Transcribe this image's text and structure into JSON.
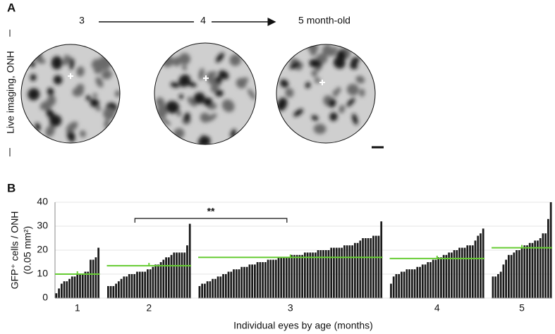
{
  "panel_a": {
    "label": "A",
    "side_label": "Live imaging, ONH",
    "timepoints": [
      "3",
      "4",
      "5 month-old"
    ]
  },
  "chart_data": {
    "type": "bar",
    "label": "B",
    "ylabel": [
      "GFP⁺ cells / ONH",
      "(0.05 mm²)"
    ],
    "xlabel": "Individual eyes by age (months)",
    "ylim": [
      0,
      40
    ],
    "yticks": [
      0,
      10,
      20,
      30,
      40
    ],
    "grid": true,
    "bar_color": "#1a1a1a",
    "mean_color": "#66cc33",
    "groups": [
      {
        "name": "1",
        "mean": 10,
        "values": [
          2,
          4,
          6,
          7,
          7,
          8,
          9,
          9,
          10,
          10,
          10,
          11,
          11,
          16,
          16,
          17,
          21
        ]
      },
      {
        "name": "2",
        "mean": 13.5,
        "values": [
          5,
          5,
          5,
          6,
          7,
          8,
          9,
          9,
          10,
          10,
          10,
          11,
          11,
          11,
          11,
          12,
          12,
          13,
          14,
          14,
          15,
          16,
          17,
          17,
          18,
          19,
          19,
          19,
          19,
          19,
          22,
          31
        ]
      },
      {
        "name": "3",
        "mean": 17,
        "values": [
          5,
          6,
          6,
          7,
          7,
          8,
          8,
          9,
          9,
          10,
          10,
          11,
          11,
          12,
          12,
          12,
          13,
          13,
          13,
          14,
          14,
          14,
          15,
          15,
          15,
          15,
          16,
          16,
          16,
          16,
          17,
          17,
          17,
          17,
          17,
          18,
          18,
          18,
          18,
          18,
          19,
          19,
          19,
          19,
          19,
          20,
          20,
          20,
          20,
          20,
          21,
          21,
          21,
          21,
          21,
          22,
          22,
          22,
          22,
          23,
          23,
          24,
          25,
          25,
          25,
          25,
          26,
          26,
          26,
          32
        ]
      },
      {
        "name": "4",
        "mean": 16.5,
        "values": [
          6,
          9,
          10,
          10,
          11,
          11,
          12,
          12,
          12,
          12,
          13,
          13,
          14,
          14,
          15,
          15,
          16,
          16,
          17,
          17,
          18,
          18,
          19,
          19,
          20,
          20,
          21,
          21,
          21,
          22,
          22,
          22,
          24,
          26,
          27,
          29
        ]
      },
      {
        "name": "5",
        "mean": 21,
        "values": [
          9,
          9,
          10,
          11,
          14,
          16,
          18,
          18,
          19,
          20,
          20,
          21,
          22,
          22,
          23,
          23,
          24,
          24,
          25,
          27,
          27,
          33,
          40
        ]
      }
    ],
    "significance": "**"
  }
}
